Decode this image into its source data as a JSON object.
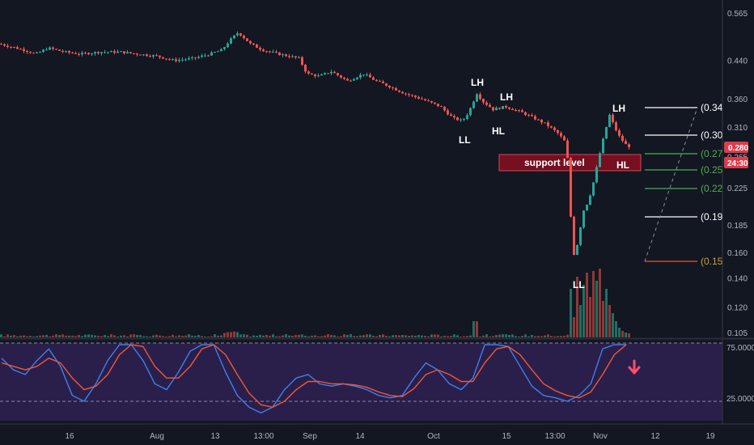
{
  "chart_data": [
    {
      "type": "candlestick",
      "y_axis": {
        "scale": "log",
        "range": [
          0.103,
          0.6
        ],
        "tick_labels": [
          "0.565",
          "0.440",
          "0.360",
          "0.310",
          "0.265",
          "0.225",
          "0.185",
          "0.160",
          "0.140",
          "0.120",
          "0.105"
        ]
      },
      "x_axis": {
        "tick_labels": [
          "16",
          "Aug",
          "13",
          "13:00",
          "Sep",
          "14",
          "Oct",
          "15",
          "13:00",
          "Nov",
          "12",
          "19"
        ]
      },
      "last_price": "0.280",
      "countdown": "24:30",
      "price_path": [
        [
          0,
          0.48
        ],
        [
          30,
          0.465
        ],
        [
          45,
          0.455
        ],
        [
          60,
          0.47
        ],
        [
          80,
          0.46
        ],
        [
          100,
          0.455
        ],
        [
          125,
          0.46
        ],
        [
          150,
          0.46
        ],
        [
          170,
          0.455
        ],
        [
          195,
          0.45
        ],
        [
          215,
          0.44
        ],
        [
          240,
          0.445
        ],
        [
          260,
          0.455
        ],
        [
          275,
          0.465
        ],
        [
          285,
          0.49
        ],
        [
          295,
          0.51
        ],
        [
          310,
          0.48
        ],
        [
          325,
          0.465
        ],
        [
          345,
          0.455
        ],
        [
          370,
          0.445
        ],
        [
          380,
          0.41
        ],
        [
          395,
          0.405
        ],
        [
          410,
          0.415
        ],
        [
          430,
          0.395
        ],
        [
          450,
          0.41
        ],
        [
          465,
          0.395
        ],
        [
          480,
          0.385
        ],
        [
          500,
          0.37
        ],
        [
          520,
          0.36
        ],
        [
          545,
          0.345
        ],
        [
          560,
          0.325
        ],
        [
          572,
          0.32
        ],
        [
          580,
          0.335
        ],
        [
          590,
          0.37
        ],
        [
          597,
          0.355
        ],
        [
          610,
          0.34
        ],
        [
          625,
          0.345
        ],
        [
          645,
          0.335
        ],
        [
          660,
          0.325
        ],
        [
          675,
          0.315
        ],
        [
          690,
          0.3
        ],
        [
          700,
          0.285
        ],
        [
          704,
          0.24
        ],
        [
          707,
          0.17
        ],
        [
          711,
          0.155
        ],
        [
          716,
          0.175
        ],
        [
          722,
          0.2
        ],
        [
          728,
          0.21
        ],
        [
          735,
          0.235
        ],
        [
          742,
          0.27
        ],
        [
          748,
          0.3
        ],
        [
          754,
          0.33
        ],
        [
          760,
          0.31
        ],
        [
          766,
          0.295
        ],
        [
          772,
          0.285
        ],
        [
          776,
          0.28
        ]
      ],
      "fibonacci_levels": [
        {
          "label": "(0.34",
          "color": "#ffffff"
        },
        {
          "label": "(0.30",
          "color": "#ffffff"
        },
        {
          "label": "(0.27",
          "color": "#4caf50"
        },
        {
          "label": "(0.25",
          "color": "#4caf50"
        },
        {
          "label": "(0.22",
          "color": "#4caf50"
        },
        {
          "label": "(0.19",
          "color": "#ffffff"
        },
        {
          "label": "(0.15",
          "color": "#c9a227"
        }
      ],
      "annotations": [
        "LH",
        "LH",
        "LH",
        "LL",
        "HL",
        "LL",
        "HL"
      ],
      "support_zone": {
        "label": "support level",
        "color": "#880e1f"
      },
      "volume": {
        "bear_color": "#a33a3a",
        "bull_color": "#26786a"
      }
    },
    {
      "type": "line",
      "name": "stochastic-oscillator",
      "y_tick_labels": [
        "75.0000",
        "25.0000"
      ],
      "ylim": [
        0,
        100
      ],
      "bands": [
        75,
        25
      ],
      "background": "#2a1f4a",
      "series": [
        {
          "color": "#3d7ff0",
          "values": [
            62,
            52,
            48,
            60,
            70,
            55,
            30,
            25,
            40,
            60,
            85,
            82,
            60,
            40,
            35,
            50,
            68,
            85,
            75,
            50,
            30,
            20,
            15,
            20,
            35,
            45,
            48,
            40,
            38,
            40,
            38,
            35,
            30,
            28,
            30,
            45,
            58,
            52,
            40,
            35,
            45,
            75,
            82,
            72,
            55,
            38,
            30,
            28,
            25,
            30,
            40,
            70,
            88,
            92
          ]
        },
        {
          "color": "#f0573a",
          "values": [
            58,
            55,
            52,
            55,
            62,
            58,
            45,
            35,
            38,
            48,
            65,
            78,
            72,
            55,
            45,
            45,
            55,
            70,
            78,
            65,
            48,
            32,
            22,
            20,
            25,
            35,
            42,
            42,
            40,
            40,
            39,
            37,
            33,
            30,
            29,
            36,
            48,
            52,
            48,
            42,
            42,
            58,
            70,
            72,
            65,
            52,
            40,
            34,
            30,
            28,
            33,
            48,
            65,
            78
          ]
        }
      ],
      "arrow_color": "#ff4d6d"
    }
  ]
}
